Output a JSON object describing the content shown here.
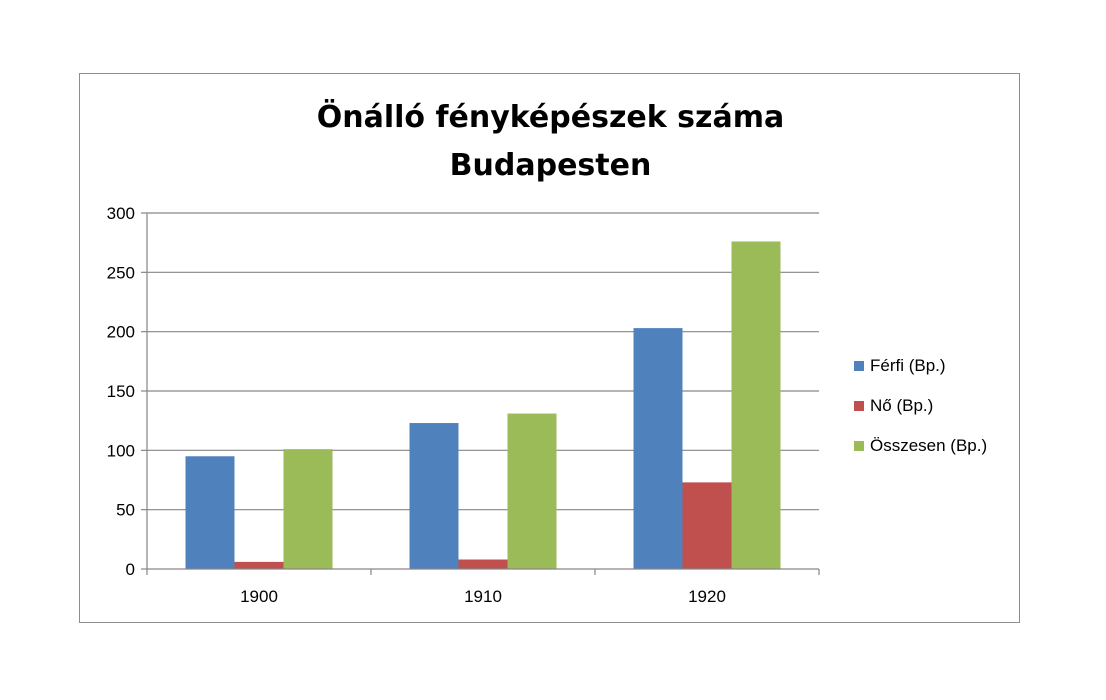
{
  "chart_data": {
    "type": "bar",
    "title": [
      "Önálló fényképészek száma",
      "Budapesten"
    ],
    "xlabel": "",
    "ylabel": "",
    "categories": [
      "1900",
      "1910",
      "1920"
    ],
    "series": [
      {
        "name": "Férfi (Bp.)",
        "color": "#4f81bd",
        "values": [
          95,
          123,
          203
        ]
      },
      {
        "name": "Nő (Bp.)",
        "color": "#c0504d",
        "values": [
          6,
          8,
          73
        ]
      },
      {
        "name": "Összesen (Bp.)",
        "color": "#9bbb59",
        "values": [
          101,
          131,
          276
        ]
      }
    ],
    "ylim": [
      0,
      300
    ],
    "yticks": [
      "0",
      "50",
      "100",
      "150",
      "200",
      "250",
      "300"
    ],
    "grid": true,
    "legend_position": "right"
  }
}
